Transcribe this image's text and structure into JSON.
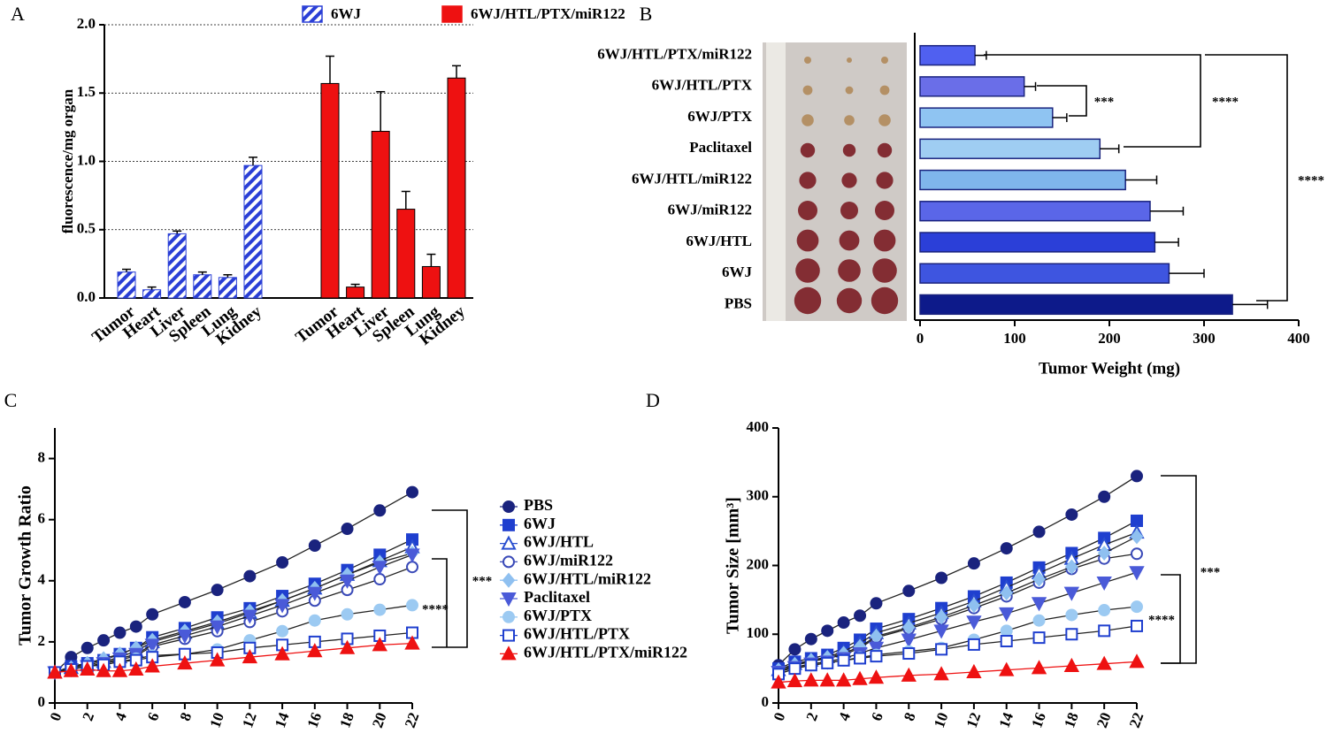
{
  "chart_data": [
    {
      "type": "bar",
      "panel_label": "A",
      "ylabel": "fluorescence/mg organ",
      "categories": [
        "Tumor",
        "Heart",
        "Liver",
        "Spleen",
        "Lung",
        "Kidney"
      ],
      "series": [
        {
          "name": "6WJ",
          "color": "#2a3fd6",
          "pattern": "hatch",
          "values": [
            0.19,
            0.06,
            0.47,
            0.17,
            0.15,
            0.97
          ],
          "errors": [
            0.02,
            0.02,
            0.02,
            0.02,
            0.02,
            0.06
          ]
        },
        {
          "name": "6WJ/HTL/PTX/miR122",
          "color": "#ee1111",
          "pattern": "solid",
          "values": [
            1.57,
            0.08,
            1.22,
            0.65,
            0.23,
            1.61
          ],
          "errors": [
            0.2,
            0.02,
            0.29,
            0.13,
            0.09,
            0.09
          ]
        }
      ],
      "ylim": [
        0,
        2
      ],
      "yticks": [
        {
          "value": 0,
          "label": "0.0"
        },
        0.5,
        {
          "value": 1,
          "label": "1.0"
        },
        1.5,
        {
          "value": 2,
          "label": "2.0"
        }
      ],
      "grid": true
    },
    {
      "type": "hbar",
      "panel_label": "B",
      "xlabel": "Tumor Weight (mg)",
      "categories": [
        "6WJ/HTL/PTX/miR122",
        "6WJ/HTL/PTX",
        "6WJ/PTX",
        "Paclitaxel",
        "6WJ/HTL/miR122",
        "6WJ/miR122",
        "6WJ/HTL",
        "6WJ",
        "PBS"
      ],
      "values": [
        58,
        110,
        140,
        190,
        217,
        243,
        248,
        263,
        330
      ],
      "errors": [
        12,
        12,
        15,
        20,
        33,
        35,
        25,
        37,
        37
      ],
      "colors": [
        "#5060f0",
        "#6a6ee8",
        "#8fc4f2",
        "#9fcdf2",
        "#7fb6ec",
        "#5a66e8",
        "#2b3fd8",
        "#3e55e0",
        "#0d1a8a"
      ],
      "xlim": [
        0,
        400
      ],
      "xticks": [
        0,
        100,
        200,
        300,
        400
      ],
      "annotations": [
        "***",
        "****",
        "****"
      ]
    },
    {
      "type": "line",
      "panel_label": "C",
      "ylabel": "Tumor Growth Ratio",
      "x": [
        0,
        1,
        2,
        3,
        4,
        5,
        6,
        8,
        10,
        12,
        14,
        16,
        18,
        20,
        22
      ],
      "xlim": [
        0,
        22
      ],
      "xticks": [
        0,
        2,
        4,
        6,
        8,
        10,
        12,
        14,
        16,
        18,
        20,
        22
      ],
      "ylim": [
        0,
        9
      ],
      "yticks": [
        0,
        2,
        4,
        6,
        8
      ],
      "legend": "right",
      "series": [
        {
          "name": "PBS",
          "color": "#1a237e",
          "marker": "circle",
          "filled": true,
          "values": [
            1,
            1.5,
            1.8,
            2.05,
            2.3,
            2.5,
            2.9,
            3.3,
            3.7,
            4.15,
            4.6,
            5.15,
            5.7,
            6.3,
            6.9
          ]
        },
        {
          "name": "6WJ",
          "color": "#1f3fcf",
          "marker": "square",
          "filled": true,
          "values": [
            1,
            1.2,
            1.3,
            1.4,
            1.6,
            1.8,
            2.15,
            2.45,
            2.8,
            3.1,
            3.5,
            3.9,
            4.35,
            4.85,
            5.35
          ]
        },
        {
          "name": "6WJ/HTL",
          "color": "#2a4fd0",
          "marker": "triangle",
          "filled": false,
          "values": [
            1,
            1.15,
            1.25,
            1.35,
            1.5,
            1.7,
            2.0,
            2.3,
            2.6,
            2.95,
            3.35,
            3.75,
            4.2,
            4.65,
            5.1
          ]
        },
        {
          "name": "6WJ/miR122",
          "color": "#3a4ab8",
          "marker": "circle",
          "filled": false,
          "values": [
            1,
            1.1,
            1.2,
            1.3,
            1.4,
            1.55,
            1.85,
            2.1,
            2.35,
            2.65,
            3.0,
            3.35,
            3.7,
            4.05,
            4.45
          ]
        },
        {
          "name": "6WJ/HTL/miR122",
          "color": "#8fc0f0",
          "marker": "diamond",
          "filled": true,
          "values": [
            1,
            1.15,
            1.3,
            1.45,
            1.6,
            1.8,
            2.05,
            2.35,
            2.65,
            3.0,
            3.35,
            3.75,
            4.2,
            4.6,
            4.9
          ]
        },
        {
          "name": "Paclitaxel",
          "color": "#4a5ad8",
          "marker": "triangle-down",
          "filled": true,
          "values": [
            1,
            1.1,
            1.2,
            1.3,
            1.45,
            1.6,
            1.9,
            2.2,
            2.5,
            2.85,
            3.2,
            3.6,
            4.0,
            4.45,
            4.85
          ]
        },
        {
          "name": "6WJ/PTX",
          "color": "#9ccaf2",
          "marker": "circle",
          "filled": true,
          "values": [
            1,
            1.1,
            1.2,
            1.25,
            1.35,
            1.45,
            1.55,
            1.6,
            1.75,
            2.05,
            2.35,
            2.7,
            2.9,
            3.05,
            3.2
          ]
        },
        {
          "name": "6WJ/HTL/PTX",
          "color": "#1f3fcf",
          "marker": "square",
          "filled": false,
          "values": [
            1,
            1.1,
            1.2,
            1.25,
            1.35,
            1.4,
            1.5,
            1.6,
            1.65,
            1.8,
            1.9,
            2.0,
            2.1,
            2.2,
            2.3
          ]
        },
        {
          "name": "6WJ/HTL/PTX/miR122",
          "color": "#ee1111",
          "marker": "triangle",
          "filled": true,
          "values": [
            1,
            1.05,
            1.1,
            1.05,
            1.05,
            1.1,
            1.2,
            1.3,
            1.4,
            1.5,
            1.6,
            1.7,
            1.8,
            1.9,
            1.95
          ]
        }
      ],
      "annotations": [
        "***",
        "****"
      ]
    },
    {
      "type": "line",
      "panel_label": "D",
      "ylabel": "Tumor Size [mm³]",
      "x": [
        0,
        1,
        2,
        3,
        4,
        5,
        6,
        8,
        10,
        12,
        14,
        16,
        18,
        20,
        22
      ],
      "xlim": [
        0,
        22
      ],
      "xticks": [
        0,
        2,
        4,
        6,
        8,
        10,
        12,
        14,
        16,
        18,
        20,
        22
      ],
      "ylim": [
        0,
        400
      ],
      "yticks": [
        0,
        100,
        200,
        300,
        400
      ],
      "series": [
        {
          "name": "PBS",
          "color": "#1a237e",
          "marker": "circle",
          "filled": true,
          "values": [
            55,
            78,
            93,
            105,
            117,
            127,
            145,
            163,
            182,
            203,
            225,
            249,
            274,
            300,
            330
          ]
        },
        {
          "name": "6WJ",
          "color": "#1f3fcf",
          "marker": "square",
          "filled": true,
          "values": [
            50,
            60,
            65,
            70,
            80,
            92,
            108,
            122,
            138,
            155,
            175,
            197,
            218,
            240,
            265
          ]
        },
        {
          "name": "6WJ/HTL",
          "color": "#2a4fd0",
          "marker": "triangle",
          "filled": false,
          "values": [
            48,
            57,
            62,
            67,
            75,
            87,
            102,
            116,
            131,
            148,
            168,
            189,
            210,
            230,
            248
          ]
        },
        {
          "name": "6WJ/miR122",
          "color": "#3a4ab8",
          "marker": "circle",
          "filled": false,
          "values": [
            45,
            55,
            60,
            65,
            70,
            80,
            95,
            108,
            122,
            138,
            155,
            175,
            195,
            210,
            217
          ]
        },
        {
          "name": "6WJ/HTL/miR122",
          "color": "#8fc0f0",
          "marker": "diamond",
          "filled": true,
          "values": [
            48,
            56,
            62,
            66,
            72,
            82,
            97,
            110,
            125,
            142,
            160,
            180,
            198,
            218,
            242
          ]
        },
        {
          "name": "Paclitaxel",
          "color": "#4a5ad8",
          "marker": "triangle-down",
          "filled": true,
          "values": [
            45,
            52,
            57,
            60,
            65,
            72,
            80,
            92,
            105,
            118,
            130,
            145,
            160,
            175,
            190
          ]
        },
        {
          "name": "6WJ/PTX",
          "color": "#9ccaf2",
          "marker": "circle",
          "filled": true,
          "values": [
            42,
            50,
            55,
            58,
            62,
            66,
            70,
            75,
            80,
            92,
            105,
            120,
            128,
            135,
            140
          ]
        },
        {
          "name": "6WJ/HTL/PTX",
          "color": "#1f3fcf",
          "marker": "square",
          "filled": false,
          "values": [
            42,
            50,
            55,
            58,
            62,
            65,
            68,
            72,
            78,
            85,
            90,
            95,
            100,
            105,
            112
          ]
        },
        {
          "name": "6WJ/HTL/PTX/miR122",
          "color": "#ee1111",
          "marker": "triangle",
          "filled": true,
          "values": [
            30,
            32,
            33,
            33,
            33,
            35,
            37,
            40,
            42,
            45,
            48,
            51,
            54,
            57,
            60
          ]
        }
      ],
      "annotations": [
        "***",
        "****"
      ]
    }
  ]
}
